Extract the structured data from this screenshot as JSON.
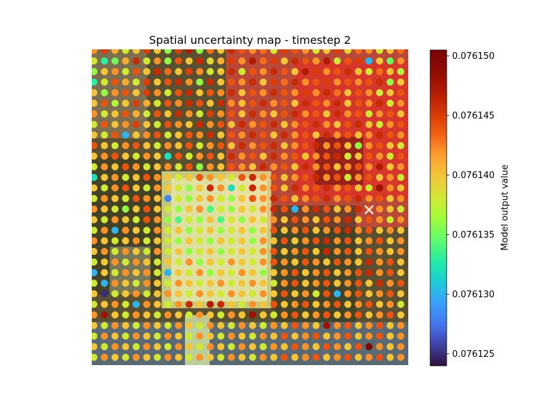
{
  "chart_data": {
    "type": "scatter",
    "title": "Spatial uncertainty map - timestep 2",
    "colorbar": {
      "label": "Model output value",
      "colormap": "turbo",
      "range": [
        0.076124,
        0.0761505
      ],
      "ticks": [
        "0.076125",
        "0.076130",
        "0.076135",
        "0.076140",
        "0.076145",
        "0.076150"
      ],
      "tick_values": [
        0.076125,
        0.07613,
        0.076135,
        0.07614,
        0.076145,
        0.07615
      ]
    },
    "grid": {
      "cols": 30,
      "rows": 30
    },
    "background": "aerial image overlay (heatmap-tinted)",
    "marker": {
      "symbol": "x",
      "col": 26,
      "row": 15,
      "color": "#ffffff"
    },
    "values": [
      [
        0.076142,
        0.076145,
        0.076141,
        0.076138,
        0.07614,
        0.076145,
        0.07614,
        0.076136,
        0.076145,
        0.076147,
        0.076136,
        0.076143,
        0.07614,
        0.076146,
        0.076144,
        0.076142,
        0.076143,
        0.076138,
        0.076145,
        0.076144,
        0.076142,
        0.076138,
        0.07614,
        0.076145,
        0.076139,
        0.076143,
        0.076142,
        0.076138,
        0.07614,
        0.076143
      ],
      [
        0.076138,
        0.076133,
        0.076135,
        0.076141,
        0.076146,
        0.076138,
        0.076142,
        0.076136,
        0.076144,
        0.07614,
        0.076146,
        0.076139,
        0.076141,
        0.076145,
        0.076142,
        0.076147,
        0.076143,
        0.076145,
        0.07614,
        0.076146,
        0.076144,
        0.076142,
        0.076147,
        0.076138,
        0.076144,
        0.076145,
        0.07613,
        0.07614,
        0.076135,
        0.076142
      ],
      [
        0.076136,
        0.07614,
        0.076142,
        0.076138,
        0.076144,
        0.07614,
        0.076146,
        0.076143,
        0.07614,
        0.076145,
        0.076142,
        0.076138,
        0.07614,
        0.076146,
        0.076138,
        0.076144,
        0.076142,
        0.076146,
        0.076144,
        0.07614,
        0.076147,
        0.076145,
        0.076142,
        0.076144,
        0.076146,
        0.07614,
        0.076138,
        0.076143,
        0.07614,
        0.076137
      ],
      [
        0.076133,
        0.076138,
        0.076144,
        0.076141,
        0.076138,
        0.076145,
        0.07614,
        0.076144,
        0.076146,
        0.076142,
        0.076136,
        0.076146,
        0.07614,
        0.076144,
        0.076142,
        0.076146,
        0.07614,
        0.076145,
        0.076143,
        0.076146,
        0.076142,
        0.076144,
        0.076145,
        0.076142,
        0.076144,
        0.076142,
        0.076144,
        0.076146,
        0.076136,
        0.07614
      ],
      [
        0.07614,
        0.076136,
        0.076142,
        0.076144,
        0.07614,
        0.076145,
        0.076142,
        0.076138,
        0.076144,
        0.076146,
        0.07614,
        0.076144,
        0.076142,
        0.076146,
        0.07614,
        0.076144,
        0.076142,
        0.076146,
        0.076144,
        0.076142,
        0.076145,
        0.076142,
        0.076146,
        0.076143,
        0.07614,
        0.076144,
        0.076142,
        0.076138,
        0.07614,
        0.076144
      ],
      [
        0.07614,
        0.076144,
        0.076137,
        0.07614,
        0.076145,
        0.076141,
        0.076138,
        0.076144,
        0.076142,
        0.076146,
        0.076144,
        0.07614,
        0.076146,
        0.076142,
        0.07614,
        0.076144,
        0.076146,
        0.076142,
        0.076144,
        0.07614,
        0.076146,
        0.076144,
        0.076142,
        0.076146,
        0.07614,
        0.076144,
        0.076142,
        0.076146,
        0.076138,
        0.076142
      ],
      [
        0.076142,
        0.076138,
        0.07614,
        0.076144,
        0.076141,
        0.076138,
        0.076144,
        0.07614,
        0.076146,
        0.076142,
        0.076138,
        0.076145,
        0.076142,
        0.076144,
        0.07614,
        0.076146,
        0.076142,
        0.07614,
        0.076144,
        0.076146,
        0.076142,
        0.076144,
        0.07614,
        0.076146,
        0.076142,
        0.076144,
        0.076138,
        0.076142,
        0.076144,
        0.07614
      ],
      [
        0.076138,
        0.076144,
        0.07614,
        0.076142,
        0.076145,
        0.07614,
        0.076138,
        0.076144,
        0.076142,
        0.07614,
        0.076146,
        0.076142,
        0.076144,
        0.07614,
        0.076146,
        0.076142,
        0.076144,
        0.076146,
        0.07614,
        0.076142,
        0.076144,
        0.076146,
        0.076142,
        0.07614,
        0.076144,
        0.076146,
        0.07614,
        0.076138,
        0.076142,
        0.076144
      ],
      [
        0.07614,
        0.076138,
        0.076144,
        0.07613,
        0.07614,
        0.076142,
        0.076144,
        0.076138,
        0.07614,
        0.076144,
        0.076142,
        0.076146,
        0.07614,
        0.076144,
        0.076142,
        0.076146,
        0.076144,
        0.07614,
        0.076146,
        0.076142,
        0.076144,
        0.07614,
        0.076146,
        0.076142,
        0.076144,
        0.07614,
        0.076142,
        0.076146,
        0.076144,
        0.076142
      ],
      [
        0.076144,
        0.07614,
        0.076138,
        0.076142,
        0.076144,
        0.07614,
        0.076138,
        0.076142,
        0.07614,
        0.076144,
        0.076138,
        0.076142,
        0.076144,
        0.07614,
        0.076146,
        0.076142,
        0.076144,
        0.076146,
        0.07614,
        0.076142,
        0.076144,
        0.076146,
        0.076142,
        0.076144,
        0.07614,
        0.076136,
        0.076142,
        0.076144,
        0.07614,
        0.076138
      ],
      [
        0.07614,
        0.076142,
        0.076144,
        0.07614,
        0.076138,
        0.076142,
        0.07614,
        0.076132,
        0.076144,
        0.076138,
        0.076142,
        0.076144,
        0.07614,
        0.076146,
        0.076142,
        0.076144,
        0.07614,
        0.076146,
        0.076142,
        0.076144,
        0.07614,
        0.076142,
        0.076144,
        0.076146,
        0.076138,
        0.07614,
        0.076144,
        0.076142,
        0.076138,
        0.076144
      ],
      [
        0.076138,
        0.076142,
        0.07614,
        0.076144,
        0.076142,
        0.076138,
        0.07614,
        0.076142,
        0.076138,
        0.076144,
        0.076136,
        0.076142,
        0.07614,
        0.076144,
        0.076142,
        0.07614,
        0.076146,
        0.076142,
        0.076144,
        0.07614,
        0.076146,
        0.076142,
        0.076144,
        0.07614,
        0.076142,
        0.076144,
        0.076142,
        0.076147,
        0.07614,
        0.076142
      ],
      [
        0.076132,
        0.07614,
        0.076142,
        0.076138,
        0.07614,
        0.076144,
        0.076142,
        0.07614,
        0.076138,
        0.07614,
        0.076144,
        0.076142,
        0.07614,
        0.076138,
        0.076144,
        0.076146,
        0.076142,
        0.076144,
        0.07614,
        0.076142,
        0.076144,
        0.076146,
        0.076142,
        0.076144,
        0.076138,
        0.076142,
        0.076144,
        0.07614,
        0.076142,
        0.076138
      ],
      [
        0.07614,
        0.076138,
        0.076142,
        0.076144,
        0.07614,
        0.076138,
        0.076142,
        0.07614,
        0.076138,
        0.076136,
        0.07614,
        0.076146,
        0.076142,
        0.076132,
        0.076138,
        0.076146,
        0.076142,
        0.076144,
        0.07614,
        0.076146,
        0.076142,
        0.076144,
        0.076146,
        0.076142,
        0.076144,
        0.07614,
        0.076138,
        0.076148,
        0.076142,
        0.07614
      ],
      [
        0.076138,
        0.076142,
        0.07614,
        0.076138,
        0.076144,
        0.076142,
        0.07614,
        0.076128,
        0.076138,
        0.076136,
        0.07614,
        0.076142,
        0.076138,
        0.076136,
        0.07614,
        0.076144,
        0.076142,
        0.076146,
        0.076144,
        0.07614,
        0.076142,
        0.076144,
        0.076146,
        0.076142,
        0.076144,
        0.076146,
        0.076142,
        0.076144,
        0.07614,
        0.076142
      ],
      [
        0.076142,
        0.07614,
        0.076138,
        0.076136,
        0.07614,
        0.076144,
        0.07614,
        0.076138,
        0.076136,
        0.07614,
        0.076142,
        0.076134,
        0.076138,
        0.076136,
        0.07614,
        0.076138,
        0.076142,
        0.076146,
        0.076144,
        0.07613,
        0.076142,
        0.076146,
        0.076144,
        0.07614,
        0.076142,
        0.076146,
        0.076144,
        0.076142,
        0.07614,
        0.076138
      ],
      [
        0.07614,
        0.076138,
        0.076142,
        0.07614,
        0.076138,
        0.076144,
        0.076142,
        0.076136,
        0.076134,
        0.076138,
        0.076136,
        0.07614,
        0.076134,
        0.076138,
        0.076136,
        0.07614,
        0.076138,
        0.076142,
        0.07614,
        0.076144,
        0.076142,
        0.07614,
        0.076144,
        0.076142,
        0.076146,
        0.07614,
        0.076144,
        0.076142,
        0.076138,
        0.076142
      ],
      [
        0.076138,
        0.076142,
        0.07613,
        0.076142,
        0.07614,
        0.076138,
        0.076142,
        0.076138,
        0.07614,
        0.076136,
        0.076138,
        0.07614,
        0.076136,
        0.076138,
        0.07614,
        0.076136,
        0.07614,
        0.076144,
        0.07614,
        0.076142,
        0.076144,
        0.07614,
        0.076142,
        0.076144,
        0.076146,
        0.076142,
        0.076144,
        0.07614,
        0.076142,
        0.07614
      ],
      [
        0.076142,
        0.07614,
        0.076138,
        0.07614,
        0.076142,
        0.076138,
        0.07614,
        0.076138,
        0.076136,
        0.07614,
        0.076138,
        0.076136,
        0.07614,
        0.076138,
        0.07614,
        0.076136,
        0.076142,
        0.07614,
        0.076144,
        0.07614,
        0.076142,
        0.076144,
        0.076146,
        0.076142,
        0.076144,
        0.07614,
        0.076142,
        0.076144,
        0.07614,
        0.076142
      ],
      [
        0.07614,
        0.076142,
        0.076138,
        0.076142,
        0.07614,
        0.076138,
        0.076142,
        0.076138,
        0.07614,
        0.076136,
        0.076138,
        0.07614,
        0.076136,
        0.076138,
        0.07614,
        0.076138,
        0.076142,
        0.076144,
        0.07614,
        0.076142,
        0.076144,
        0.07614,
        0.076146,
        0.076142,
        0.076144,
        0.07614,
        0.076144,
        0.076142,
        0.07614,
        0.076142
      ],
      [
        0.076138,
        0.07614,
        0.076142,
        0.076138,
        0.076142,
        0.07614,
        0.076138,
        0.07614,
        0.076138,
        0.076142,
        0.076136,
        0.07614,
        0.076138,
        0.076142,
        0.07614,
        0.076138,
        0.076142,
        0.076144,
        0.076142,
        0.07614,
        0.076144,
        0.076142,
        0.07614,
        0.076144,
        0.076142,
        0.07614,
        0.076146,
        0.076142,
        0.076144,
        0.07614
      ],
      [
        0.07613,
        0.07614,
        0.076138,
        0.076142,
        0.07614,
        0.076142,
        0.076138,
        0.07613,
        0.07614,
        0.076138,
        0.076142,
        0.076136,
        0.07614,
        0.076138,
        0.076142,
        0.07614,
        0.076136,
        0.07614,
        0.076142,
        0.076144,
        0.07614,
        0.076142,
        0.076144,
        0.07614,
        0.076142,
        0.076144,
        0.076146,
        0.076142,
        0.076144,
        0.07614
      ],
      [
        0.076138,
        0.07613,
        0.076142,
        0.07614,
        0.076138,
        0.076142,
        0.07614,
        0.076138,
        0.076142,
        0.07614,
        0.076138,
        0.07614,
        0.076142,
        0.076138,
        0.07614,
        0.076142,
        0.07614,
        0.076138,
        0.076142,
        0.076144,
        0.07614,
        0.076142,
        0.076144,
        0.07614,
        0.076142,
        0.076144,
        0.07614,
        0.076146,
        0.076142,
        0.076144
      ],
      [
        0.07614,
        0.076125,
        0.076138,
        0.07614,
        0.076142,
        0.076138,
        0.07614,
        0.076142,
        0.07614,
        0.076138,
        0.076142,
        0.07614,
        0.076138,
        0.076142,
        0.07614,
        0.076138,
        0.076142,
        0.07614,
        0.076144,
        0.07614,
        0.076142,
        0.076138,
        0.076144,
        0.07613,
        0.076142,
        0.076144,
        0.07614,
        0.076142,
        0.076144,
        0.07614
      ],
      [
        0.076138,
        0.07614,
        0.076142,
        0.076138,
        0.07613,
        0.076142,
        0.07614,
        0.076138,
        0.076142,
        0.076146,
        0.07614,
        0.076147,
        0.076146,
        0.07614,
        0.076138,
        0.076142,
        0.07614,
        0.076144,
        0.07614,
        0.076142,
        0.076144,
        0.07614,
        0.076142,
        0.076144,
        0.07614,
        0.076142,
        0.076144,
        0.07614,
        0.076142,
        0.076138
      ],
      [
        0.076142,
        0.076148,
        0.07614,
        0.076138,
        0.076142,
        0.07614,
        0.076138,
        0.076142,
        0.07614,
        0.076138,
        0.076142,
        0.07614,
        0.076138,
        0.076142,
        0.07614,
        0.076148,
        0.07614,
        0.076138,
        0.076142,
        0.076144,
        0.07614,
        0.076142,
        0.076144,
        0.07614,
        0.076142,
        0.076144,
        0.07614,
        0.076142,
        0.076144,
        0.07614
      ],
      [
        0.07614,
        0.076138,
        0.076142,
        0.07614,
        0.076138,
        0.076142,
        0.07614,
        0.076138,
        0.076142,
        0.07614,
        0.076138,
        0.076142,
        0.07614,
        0.076138,
        0.076142,
        0.07614,
        0.076138,
        0.076142,
        0.07614,
        0.076144,
        0.076142,
        0.07614,
        0.076148,
        0.076142,
        0.076144,
        0.07614,
        0.076142,
        0.076144,
        0.07614,
        0.076142
      ],
      [
        0.076138,
        0.076142,
        0.07614,
        0.076138,
        0.076142,
        0.07614,
        0.076138,
        0.076142,
        0.07614,
        0.076138,
        0.076142,
        0.07614,
        0.076138,
        0.076142,
        0.07614,
        0.076138,
        0.076142,
        0.07614,
        0.076144,
        0.07614,
        0.076142,
        0.076144,
        0.07614,
        0.076142,
        0.076144,
        0.07614,
        0.076142,
        0.076144,
        0.07614,
        0.076142
      ],
      [
        0.07614,
        0.076138,
        0.076142,
        0.07614,
        0.076138,
        0.076142,
        0.07614,
        0.076138,
        0.076142,
        0.07614,
        0.076138,
        0.076142,
        0.07614,
        0.076138,
        0.076142,
        0.07614,
        0.076138,
        0.076142,
        0.07614,
        0.076144,
        0.076142,
        0.07614,
        0.076144,
        0.076142,
        0.07614,
        0.076144,
        0.07615,
        0.076142,
        0.07614,
        0.076142
      ],
      [
        0.076138,
        0.076142,
        0.07614,
        0.076138,
        0.076142,
        0.07614,
        0.076138,
        0.076142,
        0.07614,
        0.076138,
        0.076142,
        0.07614,
        0.076138,
        0.076142,
        0.07614,
        0.076138,
        0.076142,
        0.07614,
        0.076144,
        0.07614,
        0.076142,
        0.076144,
        0.07614,
        0.076142,
        0.076144,
        0.07614,
        0.076142,
        0.076144,
        0.07614,
        0.076142
      ]
    ]
  }
}
